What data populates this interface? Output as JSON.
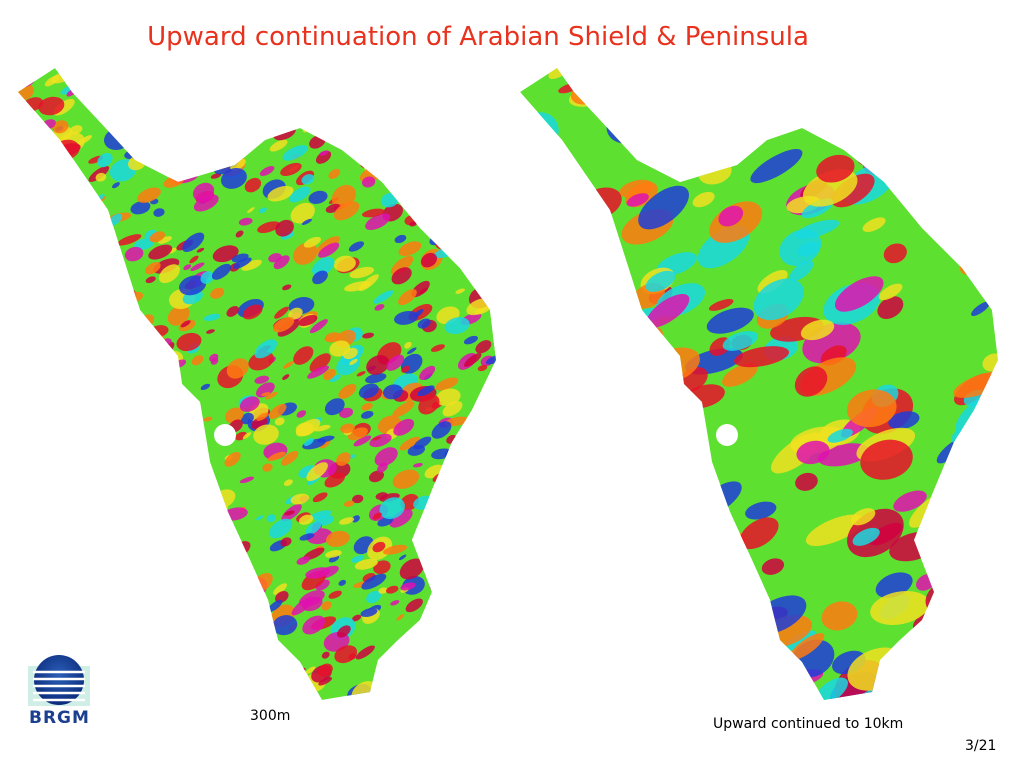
{
  "title": "Upward continuation of Arabian Shield & Peninsula",
  "maps": [
    {
      "caption": "300m"
    },
    {
      "caption": "Upward continued to 10km"
    }
  ],
  "logo": {
    "text": "BRGM"
  },
  "page": "3/21"
}
